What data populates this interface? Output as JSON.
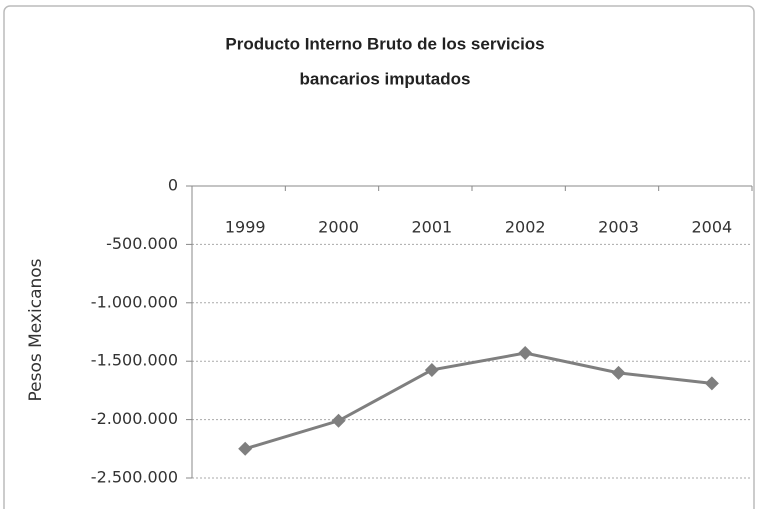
{
  "chart_data": {
    "type": "line",
    "title": [
      "Producto Interno Bruto de los servicios",
      "bancarios imputados"
    ],
    "y_label": "Pesos Mexicanos",
    "categories": [
      "1999",
      "2000",
      "2001",
      "2002",
      "2003",
      "2004"
    ],
    "series": [
      {
        "name": "PIB servicios bancarios imputados",
        "color": "#7f7f7f",
        "values": [
          -2250000,
          -2010000,
          -1575000,
          -1430000,
          -1600000,
          -1690000
        ]
      }
    ],
    "ylim": [
      -2500000,
      0
    ],
    "yticks": [
      {
        "value": -2500000,
        "label": "-2.500.000"
      },
      {
        "value": -2000000,
        "label": "-2.000.000"
      },
      {
        "value": -1500000,
        "label": "-1.500.000"
      },
      {
        "value": -1000000,
        "label": "-1.000.000"
      },
      {
        "value": -500000,
        "label": "-500.000"
      },
      0
    ],
    "grid": true,
    "legend": false
  }
}
